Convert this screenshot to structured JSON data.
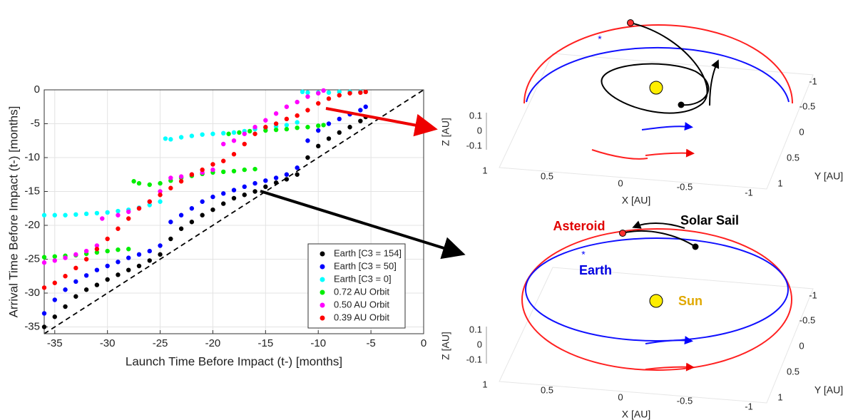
{
  "chart_data": {
    "type": "scatter",
    "x_label": "Launch Time Before Impact (t-) [months]",
    "y_label": "Arrival Time Before Impact (t-) [months]",
    "xlim": [
      -36,
      0
    ],
    "ylim": [
      -36,
      0
    ],
    "xticks": [
      -35,
      -30,
      -25,
      -20,
      -15,
      -10,
      -5,
      0
    ],
    "yticks": [
      -35,
      -30,
      -25,
      -20,
      -15,
      -10,
      -5,
      0
    ],
    "grid": true,
    "legend": "lower right",
    "series": [
      {
        "name": "Earth [C3 = 154]",
        "color": "#000000",
        "x": [
          -36,
          -35,
          -34,
          -33,
          -32,
          -31,
          -30,
          -29,
          -28,
          -27,
          -26,
          -25,
          -24,
          -23,
          -22,
          -21,
          -20,
          -19,
          -18,
          -17,
          -16,
          -15,
          -14,
          -13,
          -12,
          -11,
          -10,
          -9,
          -8,
          -7,
          -6,
          -5.5
        ],
        "values": [
          -35,
          -33.5,
          -32,
          -30.5,
          -29.5,
          -28.8,
          -28,
          -27.3,
          -26.6,
          -26,
          -25.2,
          -24.3,
          -22,
          -20.5,
          -19.5,
          -18.5,
          -17.7,
          -16.8,
          -16,
          -15.5,
          -15,
          -14.3,
          -13.7,
          -13.2,
          -12.5,
          -10,
          -8.3,
          -7.2,
          -6.3,
          -5.5,
          -4.6,
          -4
        ]
      },
      {
        "name": "Earth [C3 = 50]",
        "color": "#0000ff",
        "x": [
          -36,
          -35,
          -34,
          -33,
          -32,
          -31,
          -30,
          -29,
          -28,
          -27,
          -26,
          -25,
          -24,
          -23,
          -22,
          -21,
          -20,
          -19,
          -18,
          -17,
          -16,
          -15,
          -14,
          -13,
          -12,
          -11,
          -10,
          -9,
          -8,
          -7,
          -6,
          -5.5
        ],
        "values": [
          -33,
          -31,
          -29.5,
          -28.3,
          -27.4,
          -26.6,
          -26,
          -25.4,
          -24.8,
          -24.3,
          -23.8,
          -23,
          -19.5,
          -18.5,
          -17.5,
          -16.5,
          -15.8,
          -15.3,
          -14.8,
          -14.3,
          -13.8,
          -13.4,
          -13,
          -12.5,
          -11.5,
          -7.5,
          -6,
          -5,
          -4.3,
          -3.6,
          -3,
          -2.5
        ]
      },
      {
        "name": "Earth [C3 = 0]",
        "color": "#00ffff",
        "x": [
          -36,
          -35,
          -34,
          -33,
          -32,
          -31,
          -30,
          -29,
          -28,
          -27,
          -26,
          -25,
          -24.5,
          -24,
          -23,
          -22,
          -21,
          -20,
          -19,
          -18,
          -17,
          -16,
          -15,
          -14,
          -13,
          -12,
          -11.5,
          -11,
          -10,
          -9,
          -8,
          -7,
          -6,
          -5.5
        ],
        "values": [
          -18.5,
          -18.5,
          -18.5,
          -18.4,
          -18.3,
          -18.2,
          -18.1,
          -17.9,
          -17.7,
          -17.4,
          -17,
          -16.5,
          -7.2,
          -7.3,
          -7,
          -6.8,
          -6.6,
          -6.5,
          -6.4,
          -6.3,
          -6.1,
          -5.8,
          -5.6,
          -5.4,
          -5.2,
          -4.8,
          -0.3,
          -0.4,
          -0.4,
          -0.4,
          -0.3,
          -0.3,
          -0.3,
          -0.3
        ]
      },
      {
        "name": "0.72 AU Orbit",
        "color": "#00ee00",
        "x": [
          -36,
          -35,
          -34,
          -33,
          -32,
          -31,
          -30,
          -29,
          -28,
          -27.5,
          -27,
          -26,
          -25,
          -24,
          -23,
          -22,
          -21,
          -20,
          -19,
          -18,
          -17,
          -16,
          -18.5,
          -17.5,
          -16.5,
          -15,
          -14,
          -13,
          -12,
          -11,
          -10,
          -9.5
        ],
        "values": [
          -24.7,
          -24.6,
          -24.5,
          -24.4,
          -24.2,
          -24,
          -23.8,
          -23.6,
          -23.5,
          -13.5,
          -13.8,
          -14,
          -13.8,
          -13.4,
          -13,
          -12.7,
          -12.4,
          -12.2,
          -12.1,
          -12,
          -11.8,
          -11.7,
          -6.5,
          -6.3,
          -6.1,
          -6,
          -5.9,
          -5.8,
          -5.6,
          -5.5,
          -5.3,
          -5.2
        ]
      },
      {
        "name": "0.50 AU Orbit",
        "color": "#ff00ff",
        "x": [
          -36,
          -35,
          -34,
          -33,
          -32,
          -31,
          -30.5,
          -29,
          -28,
          -27,
          -26,
          -25,
          -24,
          -23,
          -22,
          -21,
          -20,
          -19,
          -18,
          -17,
          -16,
          -15,
          -14,
          -13,
          -12,
          -11,
          -10,
          -9.5
        ],
        "values": [
          -25.5,
          -25.2,
          -24.8,
          -24.3,
          -23.8,
          -23,
          -19,
          -18.5,
          -18,
          -17.5,
          -16.5,
          -15,
          -13,
          -12.8,
          -12.5,
          -12.2,
          -11.8,
          -8,
          -7.5,
          -6.5,
          -5.5,
          -4.5,
          -3.5,
          -2.5,
          -1.8,
          -1,
          -0.5,
          -0.1
        ]
      },
      {
        "name": "0.39 AU Orbit",
        "color": "#ff0000",
        "x": [
          -36,
          -35,
          -34,
          -33,
          -32,
          -31,
          -30,
          -29,
          -28,
          -27,
          -26,
          -25,
          -24,
          -23,
          -22,
          -21,
          -20,
          -19,
          -18,
          -17,
          -16,
          -15,
          -14,
          -13,
          -12,
          -11,
          -10,
          -9,
          -8,
          -7,
          -6,
          -5.5
        ],
        "values": [
          -29.2,
          -28.5,
          -27.5,
          -26.3,
          -25,
          -23.5,
          -22,
          -20.5,
          -19,
          -17.5,
          -16.5,
          -15.5,
          -14.5,
          -13.5,
          -12.5,
          -11.8,
          -11,
          -10.5,
          -9.5,
          -8,
          -6.5,
          -5.5,
          -5,
          -4.3,
          -3.8,
          -3,
          -2,
          -1.3,
          -0.8,
          -0.5,
          -0.4,
          -0.3
        ]
      }
    ]
  },
  "orbit_plots": [
    {
      "z_label": "Z [AU]",
      "x_label": "X [AU]",
      "y_label": "Y [AU]",
      "z_ticks": [
        "0.1",
        "0",
        "-0.1"
      ],
      "x_ticks": [
        "1",
        "0.5",
        "0",
        "-0.5",
        "-1"
      ],
      "y_ticks": [
        "-1",
        "-0.5",
        "0",
        "0.5",
        "1"
      ]
    },
    {
      "z_label": "Z [AU]",
      "x_label": "X [AU]",
      "y_label": "Y [AU]",
      "z_ticks": [
        "0.1",
        "0",
        "-0.1"
      ],
      "x_ticks": [
        "1",
        "0.5",
        "0",
        "-0.5",
        "-1"
      ],
      "y_ticks": [
        "-1",
        "-0.5",
        "0",
        "0.5",
        "1"
      ],
      "annotations": {
        "asteroid": "Asteroid",
        "solar_sail": "Solar Sail",
        "earth": "Earth",
        "sun": "Sun"
      }
    }
  ]
}
